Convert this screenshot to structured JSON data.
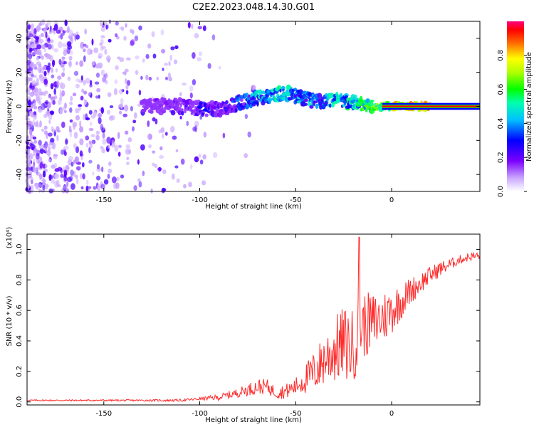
{
  "figure_title": "C2E2.2023.048.14.30.G01",
  "colorbar": {
    "label": "Normalized spectral amplitude",
    "ticks": [
      "0.0",
      "0.2",
      "0.4",
      "0.6",
      "0.8"
    ],
    "tick_values": [
      0,
      0.2,
      0.4,
      0.6,
      0.8
    ],
    "range": [
      0,
      1
    ]
  },
  "colors": {
    "line": "#ff2b2b",
    "frame": "#000000"
  },
  "chart_data": [
    {
      "type": "heatmap",
      "title": "C2E2.2023.048.14.30.G01",
      "xlabel": "Height of straight line (km)",
      "ylabel": "Frequency (Hz)",
      "xlim": [
        -190,
        46
      ],
      "ylim": [
        -50,
        50
      ],
      "xticks": [
        -150,
        -100,
        -50,
        0
      ],
      "xtick_labels": [
        "-150",
        "-100",
        "-50",
        "0"
      ],
      "yticks": [
        -40,
        -20,
        0,
        20,
        40
      ],
      "ytick_labels": [
        "-40",
        "-20",
        "0",
        "20",
        "40"
      ],
      "ridge": {
        "x": [
          -130,
          -110,
          -100,
          -90,
          -80,
          -70,
          -60,
          -55,
          -50,
          -40,
          -30,
          -20,
          -10,
          0,
          10,
          20,
          46
        ],
        "frequency": [
          0,
          0,
          -1,
          -2,
          2,
          5,
          7,
          8,
          6,
          3,
          4,
          2,
          0,
          0,
          0,
          0,
          0
        ],
        "amplitude": [
          0.15,
          0.25,
          0.3,
          0.3,
          0.4,
          0.5,
          0.55,
          0.55,
          0.5,
          0.5,
          0.55,
          0.6,
          0.7,
          0.85,
          0.95,
          0.95,
          0.95
        ]
      },
      "noise_region": {
        "x_from": -190,
        "x_to": -100,
        "amplitude": 0.1
      }
    },
    {
      "type": "line",
      "xlabel": "Height of straight line (km)",
      "ylabel": "SNR (10 * v/v)",
      "y_multiplier": "(x10⁴)",
      "xlim": [
        -190,
        46
      ],
      "ylim": [
        -0.02,
        1.1
      ],
      "xticks": [
        -150,
        -100,
        -50,
        0
      ],
      "xtick_labels": [
        "-150",
        "-100",
        "-50",
        "0"
      ],
      "yticks": [
        0,
        0.2,
        0.4,
        0.6,
        0.8,
        1.0
      ],
      "ytick_labels": [
        "0.0",
        "0.2",
        "0.4",
        "0.6",
        "0.8",
        "1.0"
      ],
      "series": [
        {
          "name": "SNR",
          "x": [
            -190,
            -160,
            -130,
            -110,
            -100,
            -90,
            -80,
            -75,
            -70,
            -65,
            -60,
            -55,
            -50,
            -45,
            -40,
            -35,
            -30,
            -25,
            -20,
            -18,
            -15,
            -10,
            -5,
            0,
            5,
            10,
            15,
            20,
            25,
            30,
            35,
            40,
            46
          ],
          "mean": [
            0.01,
            0.01,
            0.01,
            0.01,
            0.02,
            0.03,
            0.06,
            0.08,
            0.1,
            0.1,
            0.06,
            0.07,
            0.1,
            0.15,
            0.2,
            0.28,
            0.34,
            0.38,
            0.36,
            0.45,
            0.5,
            0.52,
            0.55,
            0.6,
            0.66,
            0.73,
            0.78,
            0.83,
            0.87,
            0.9,
            0.93,
            0.95,
            0.96
          ],
          "noise": [
            0.005,
            0.005,
            0.006,
            0.008,
            0.01,
            0.02,
            0.03,
            0.04,
            0.05,
            0.05,
            0.04,
            0.05,
            0.06,
            0.1,
            0.14,
            0.18,
            0.22,
            0.25,
            0.25,
            0.25,
            0.22,
            0.2,
            0.18,
            0.16,
            0.12,
            0.09,
            0.07,
            0.06,
            0.05,
            0.04,
            0.03,
            0.03,
            0.03
          ],
          "peak": {
            "x": -17,
            "y": 1.08
          }
        }
      ]
    }
  ]
}
